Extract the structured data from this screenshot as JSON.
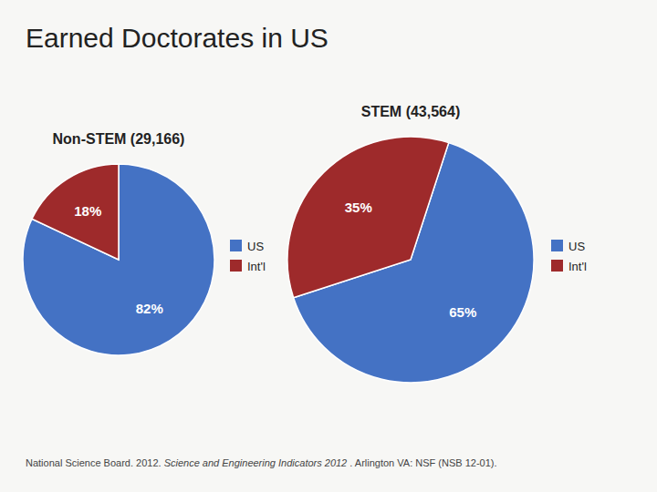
{
  "title": "Earned Doctorates in US",
  "annotations": [
    "National Science Board. 2012. ",
    "Science and Engineering Indicators 2012",
    " . Arlington VA: NSF (NSB 12-01)."
  ],
  "chart_data": [
    {
      "type": "pie",
      "subtitle": "Non-STEM (29,166)",
      "categories": [
        "US",
        "Int'l"
      ],
      "values": [
        82,
        18
      ],
      "value_labels": [
        "82%",
        "18%"
      ],
      "colors": [
        "#4472c4",
        "#9e2a2b"
      ],
      "data_labels": true,
      "legend": "right"
    },
    {
      "type": "pie",
      "subtitle": "STEM (43,564)",
      "categories": [
        "US",
        "Int'l"
      ],
      "values": [
        65,
        35
      ],
      "value_labels": [
        "65%",
        "35%"
      ],
      "colors": [
        "#4472c4",
        "#9e2a2b"
      ],
      "data_labels": true,
      "legend": "right"
    }
  ]
}
